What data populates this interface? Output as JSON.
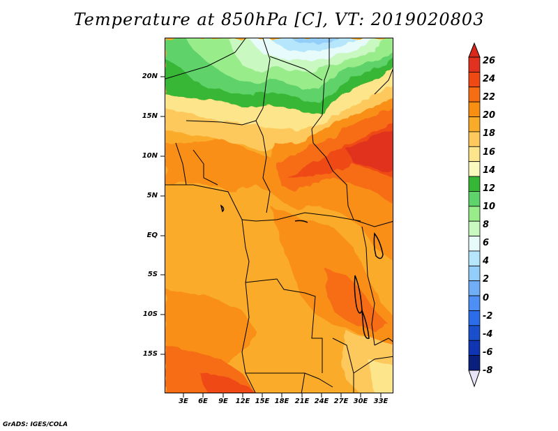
{
  "title": "Temperature at 850hPa [C], VT: 2019020803",
  "credit": "GrADS: IGES/COLA",
  "map": {
    "lat_labels": [
      "20N",
      "15N",
      "10N",
      "5N",
      "EQ",
      "5S",
      "10S",
      "15S"
    ],
    "lon_labels": [
      "3E",
      "6E",
      "9E",
      "12E",
      "15E",
      "18E",
      "21E",
      "24E",
      "27E",
      "30E",
      "33E"
    ]
  },
  "colorbar": {
    "labels": [
      "26",
      "24",
      "22",
      "20",
      "18",
      "16",
      "14",
      "12",
      "10",
      "8",
      "6",
      "4",
      "2",
      "0",
      "-2",
      "-4",
      "-6",
      "-8"
    ],
    "colors": [
      "#e0321e",
      "#ef4a16",
      "#f66d14",
      "#f98f12",
      "#fbab2a",
      "#fdc95d",
      "#fde58c",
      "#fbf9bd",
      "#37b635",
      "#5fd36b",
      "#98ec8a",
      "#c9f8c1",
      "#e6fbfa",
      "#b6e6fb",
      "#93cdfa",
      "#71aef8",
      "#4d8ff4",
      "#2b6de8",
      "#1a4fcc",
      "#1035b2",
      "#0a1e7e"
    ],
    "arrow_top_color": "#d8281c",
    "arrow_bottom_color": "#e8e4f8"
  }
}
